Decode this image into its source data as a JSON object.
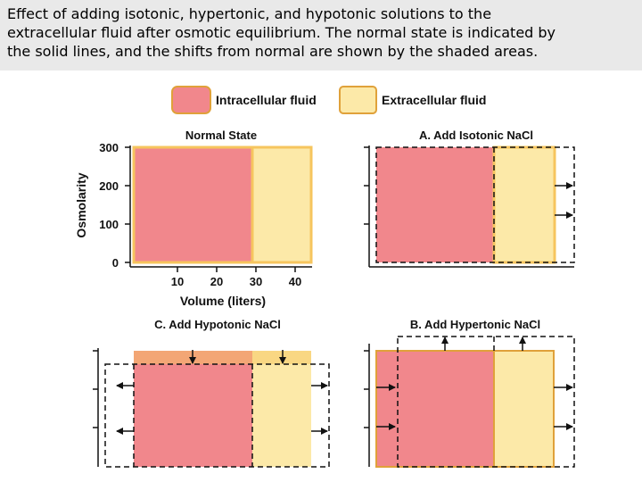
{
  "caption": {
    "lines": [
      "Effect of adding isotonic, hypertonic, and hypotonic solutions to the",
      "extracellular fluid after osmotic equilibrium. The normal state is indicated by",
      "the solid lines, and the shifts from normal are shown by the shaded areas."
    ]
  },
  "legend": {
    "intracellular": "Intracellular fluid",
    "extracellular": "Extracellular fluid"
  },
  "colors": {
    "intracellular": "#f1878c",
    "extracellular": "#fce9a8",
    "border": "#e0a13a"
  },
  "panels": {
    "normal": {
      "title": "Normal State"
    },
    "isotonic": {
      "title": "A. Add Isotonic NaCl"
    },
    "hypotonic": {
      "title": "C. Add Hypotonic NaCl"
    },
    "hypertonic": {
      "title": "B. Add Hypertonic NaCl"
    }
  },
  "axes": {
    "ylabel": "Osmolarity",
    "xlabel": "Volume (liters)",
    "yticks": [
      "300",
      "200",
      "100",
      "0"
    ],
    "xticks": [
      "10",
      "20",
      "30",
      "40"
    ]
  }
}
